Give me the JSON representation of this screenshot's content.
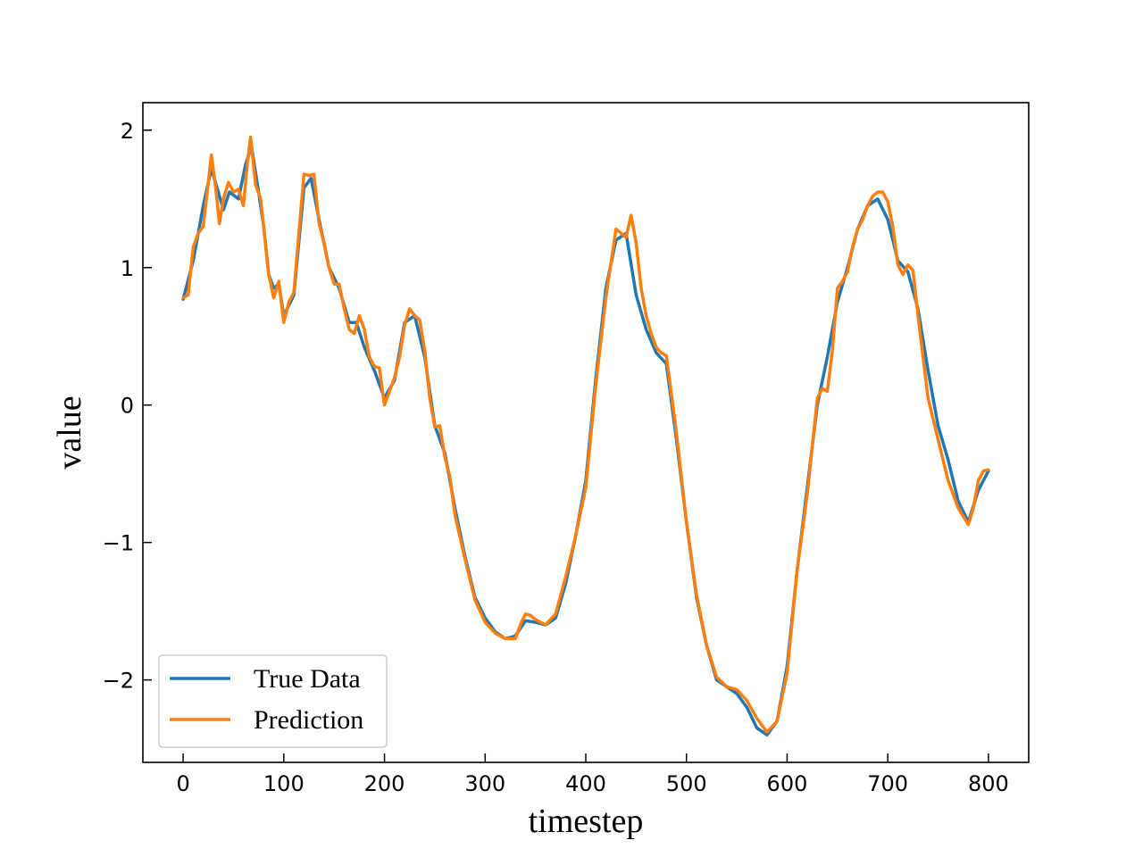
{
  "chart_data": {
    "type": "line",
    "title": "",
    "xlabel": "timestep",
    "ylabel": "value",
    "xlim": [
      -40,
      840
    ],
    "ylim": [
      -2.6,
      2.2
    ],
    "xticks": [
      0,
      100,
      200,
      300,
      400,
      500,
      600,
      700,
      800
    ],
    "yticks": [
      2,
      1,
      0,
      -1,
      -2
    ],
    "ytick_labels": [
      "2",
      "1",
      "0",
      "−1",
      "−2"
    ],
    "grid": false,
    "legend_position": "lower-left",
    "series": [
      {
        "name": "True Data",
        "color": "#1f77b4",
        "x": [
          0,
          10,
          20,
          28,
          35,
          40,
          46,
          55,
          62,
          68,
          75,
          80,
          85,
          90,
          95,
          100,
          110,
          120,
          127,
          135,
          145,
          155,
          165,
          172,
          180,
          190,
          200,
          210,
          220,
          230,
          240,
          250,
          260,
          270,
          280,
          290,
          300,
          310,
          320,
          330,
          340,
          350,
          360,
          370,
          380,
          390,
          400,
          410,
          420,
          430,
          440,
          450,
          460,
          470,
          480,
          490,
          500,
          510,
          520,
          530,
          540,
          550,
          560,
          570,
          580,
          590,
          600,
          610,
          620,
          630,
          640,
          650,
          660,
          670,
          680,
          690,
          700,
          710,
          720,
          730,
          740,
          750,
          760,
          770,
          780,
          790,
          800
        ],
        "y": [
          0.77,
          1.05,
          1.45,
          1.72,
          1.55,
          1.42,
          1.55,
          1.5,
          1.75,
          1.88,
          1.55,
          1.3,
          0.95,
          0.85,
          0.88,
          0.65,
          0.8,
          1.58,
          1.65,
          1.35,
          1.0,
          0.85,
          0.6,
          0.6,
          0.42,
          0.25,
          0.05,
          0.18,
          0.6,
          0.65,
          0.35,
          -0.15,
          -0.35,
          -0.75,
          -1.1,
          -1.4,
          -1.55,
          -1.65,
          -1.7,
          -1.68,
          -1.57,
          -1.58,
          -1.6,
          -1.55,
          -1.3,
          -0.95,
          -0.55,
          0.2,
          0.85,
          1.2,
          1.25,
          0.8,
          0.55,
          0.38,
          0.3,
          -0.25,
          -0.85,
          -1.4,
          -1.75,
          -2.0,
          -2.05,
          -2.1,
          -2.2,
          -2.35,
          -2.4,
          -2.3,
          -1.9,
          -1.2,
          -0.6,
          0.0,
          0.35,
          0.75,
          1.0,
          1.28,
          1.45,
          1.5,
          1.35,
          1.05,
          0.97,
          0.7,
          0.25,
          -0.15,
          -0.4,
          -0.7,
          -0.85,
          -0.62,
          -0.48
        ]
      },
      {
        "name": "Prediction",
        "color": "#ff7f0e",
        "x": [
          0,
          5,
          10,
          15,
          20,
          25,
          28,
          32,
          36,
          40,
          45,
          50,
          55,
          60,
          63,
          67,
          72,
          77,
          80,
          85,
          90,
          95,
          100,
          105,
          110,
          115,
          120,
          125,
          130,
          135,
          140,
          145,
          150,
          155,
          160,
          165,
          170,
          175,
          180,
          185,
          190,
          195,
          200,
          205,
          210,
          215,
          220,
          225,
          230,
          235,
          240,
          245,
          250,
          255,
          260,
          265,
          270,
          280,
          290,
          300,
          310,
          320,
          330,
          335,
          340,
          345,
          350,
          360,
          370,
          380,
          390,
          400,
          410,
          420,
          430,
          435,
          440,
          445,
          450,
          455,
          460,
          465,
          470,
          475,
          480,
          490,
          500,
          510,
          520,
          530,
          540,
          550,
          560,
          570,
          580,
          590,
          600,
          610,
          620,
          630,
          635,
          640,
          645,
          650,
          655,
          660,
          665,
          670,
          675,
          680,
          685,
          690,
          695,
          700,
          705,
          710,
          715,
          720,
          725,
          730,
          740,
          750,
          760,
          770,
          780,
          785,
          790,
          795,
          800
        ],
        "y": [
          0.78,
          0.8,
          1.15,
          1.25,
          1.3,
          1.62,
          1.82,
          1.6,
          1.32,
          1.5,
          1.62,
          1.55,
          1.57,
          1.45,
          1.7,
          1.95,
          1.6,
          1.5,
          1.3,
          0.95,
          0.78,
          0.9,
          0.6,
          0.75,
          0.82,
          1.25,
          1.68,
          1.67,
          1.68,
          1.32,
          1.18,
          1.0,
          0.88,
          0.88,
          0.7,
          0.55,
          0.52,
          0.65,
          0.55,
          0.35,
          0.28,
          0.27,
          0.0,
          0.1,
          0.2,
          0.35,
          0.58,
          0.7,
          0.65,
          0.62,
          0.4,
          0.05,
          -0.16,
          -0.15,
          -0.38,
          -0.52,
          -0.8,
          -1.12,
          -1.42,
          -1.58,
          -1.66,
          -1.7,
          -1.7,
          -1.6,
          -1.52,
          -1.53,
          -1.56,
          -1.6,
          -1.52,
          -1.25,
          -0.95,
          -0.6,
          0.15,
          0.78,
          1.28,
          1.25,
          1.22,
          1.38,
          1.18,
          0.85,
          0.65,
          0.52,
          0.42,
          0.38,
          0.36,
          -0.2,
          -0.85,
          -1.38,
          -1.75,
          -1.98,
          -2.05,
          -2.07,
          -2.15,
          -2.28,
          -2.38,
          -2.3,
          -1.95,
          -1.2,
          -0.65,
          0.05,
          0.12,
          0.1,
          0.4,
          0.85,
          0.9,
          0.97,
          1.15,
          1.28,
          1.35,
          1.45,
          1.52,
          1.55,
          1.55,
          1.48,
          1.3,
          1.02,
          0.95,
          1.02,
          0.98,
          0.65,
          0.05,
          -0.25,
          -0.55,
          -0.75,
          -0.87,
          -0.75,
          -0.55,
          -0.48,
          -0.47
        ]
      }
    ]
  }
}
